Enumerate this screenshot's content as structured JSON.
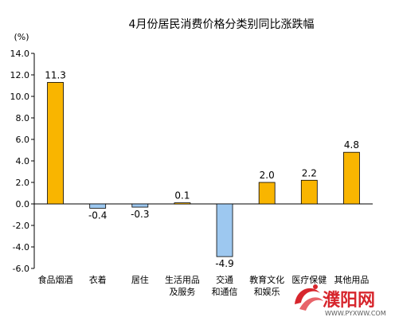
{
  "chart_data": {
    "type": "bar",
    "title": "4月份居民消费价格分类别同比涨跌幅",
    "ylabel": "(%)",
    "ylim": [
      -6.0,
      14.0
    ],
    "yticks": [
      "14.0",
      "12.0",
      "10.0",
      "8.0",
      "6.0",
      "4.0",
      "2.0",
      "0.0",
      "-2.0",
      "-4.0",
      "-6.0"
    ],
    "categories": [
      [
        "食品烟酒"
      ],
      [
        "衣着"
      ],
      [
        "居住"
      ],
      [
        "生活用品",
        "及服务"
      ],
      [
        "交通",
        "和通信"
      ],
      [
        "教育文化",
        "和娱乐"
      ],
      [
        "医疗保健"
      ],
      [
        "其他用品"
      ]
    ],
    "values": [
      11.3,
      -0.4,
      -0.3,
      0.1,
      -4.9,
      2.0,
      2.2,
      4.8
    ],
    "value_labels": [
      "11.3",
      "-0.4",
      "-0.3",
      "0.1",
      "-4.9",
      "2.0",
      "2.2",
      "4.8"
    ],
    "colors": {
      "positive": "#f9b500",
      "negative": "#9dc8f0",
      "stroke": "#000000"
    },
    "grid": false,
    "legend": "none"
  },
  "watermark": {
    "text": "濮阳网",
    "url": "WWW.PYXWW.COM",
    "color": "#d7262d"
  }
}
